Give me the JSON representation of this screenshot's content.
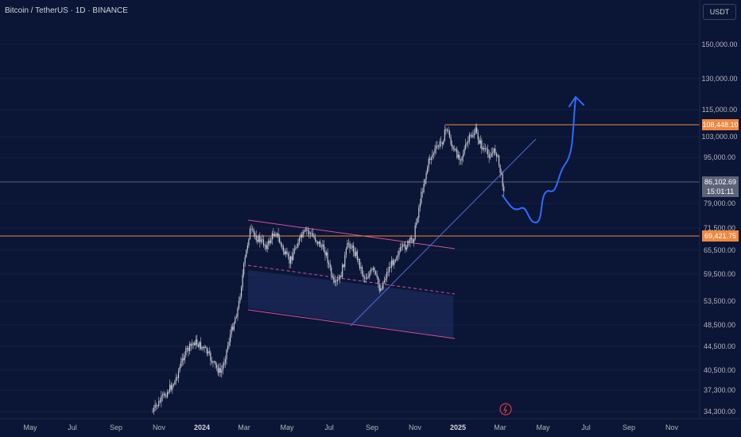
{
  "header": {
    "title": "Bitcoin / TetherUS · 1D · BINANCE",
    "currency": "USDT"
  },
  "price_axis": {
    "ticks": [
      "150,000.00",
      "130,000.00",
      "115,000.00",
      "103,000.00",
      "95,000.00",
      "79,000.00",
      "71,500.00",
      "65,500.00",
      "59,500.00",
      "53,500.00",
      "48,500.00",
      "44,500.00",
      "40,500.00",
      "37,300.00",
      "34,300.00"
    ]
  },
  "time_axis": {
    "ticks": [
      "May",
      "Jul",
      "Sep",
      "Nov",
      "2024",
      "Mar",
      "May",
      "Jul",
      "Sep",
      "Nov",
      "2025",
      "Mar",
      "May",
      "Jul",
      "Sep",
      "Nov"
    ],
    "bold": [
      "2024",
      "2025"
    ]
  },
  "price_tags": {
    "resistance": "108,448.10",
    "current": "86,102.69",
    "countdown": "15:01:11",
    "support": "69,421.75"
  },
  "colors": {
    "background": "#0b1535",
    "candles": "#c8ccd6",
    "resistance_line": "#f0883e",
    "support_line": "#f0883e",
    "channel": "#d4509a",
    "trendline": "#4f6fe0",
    "projection": "#2f6bff",
    "current_tag": "#5d6477"
  },
  "icons": {
    "event": "lightning-event-icon"
  }
}
